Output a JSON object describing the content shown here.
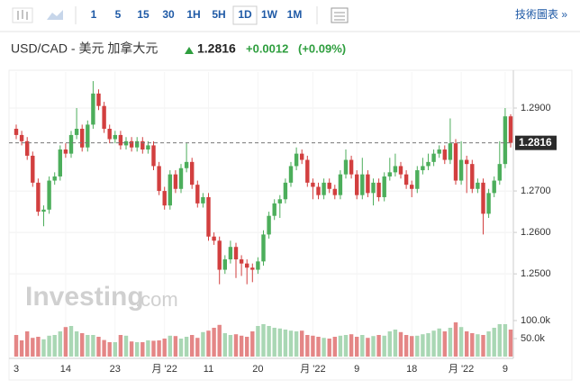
{
  "header": {
    "toolbar": [
      "1",
      "5",
      "15",
      "30",
      "1H",
      "5H",
      "1D",
      "1W",
      "1M"
    ],
    "link": "技術圖表 »",
    "pair": "USD/CAD - 美元 加拿大元",
    "change": "+0.0012",
    "change_pct": "(+0.09%)",
    "logo": "Investing",
    "logo_suffix": ".com"
  },
  "chart_data": {
    "type": "candlestick",
    "last_price": 1.2816,
    "up_color": "#4cae5b",
    "down_color": "#d23f3f",
    "volume_up_color": "#a9d7b4",
    "volume_down_color": "#e48686",
    "categories": [
      "3",
      null,
      null,
      null,
      null,
      null,
      null,
      null,
      null,
      "14",
      null,
      null,
      null,
      null,
      null,
      null,
      null,
      null,
      "23",
      null,
      null,
      null,
      null,
      null,
      null,
      null,
      null,
      "月 '22",
      null,
      null,
      null,
      null,
      null,
      null,
      null,
      "11",
      null,
      null,
      null,
      null,
      null,
      null,
      null,
      null,
      "20",
      null,
      null,
      null,
      null,
      null,
      null,
      null,
      null,
      null,
      "月 '22",
      null,
      null,
      null,
      null,
      null,
      null,
      null,
      "9",
      null,
      null,
      null,
      null,
      null,
      null,
      null,
      null,
      null,
      "18",
      null,
      null,
      null,
      null,
      null,
      null,
      null,
      null,
      "月 '22",
      null,
      null,
      null,
      null,
      null,
      null,
      null,
      "9",
      null
    ],
    "open": [
      1.285,
      1.2835,
      1.282,
      1.2785,
      1.272,
      1.265,
      1.2655,
      1.2725,
      1.2735,
      1.28,
      1.279,
      1.2835,
      1.285,
      1.2805,
      1.286,
      1.2935,
      1.2905,
      1.285,
      1.2825,
      1.2835,
      1.281,
      1.282,
      1.2805,
      1.282,
      1.28,
      1.281,
      1.276,
      1.27,
      1.2665,
      1.274,
      1.2705,
      1.2755,
      1.277,
      1.2715,
      1.267,
      1.2685,
      1.259,
      1.258,
      1.251,
      1.2535,
      1.2565,
      1.2535,
      1.2525,
      1.2515,
      1.251,
      1.253,
      1.2595,
      1.264,
      1.267,
      1.268,
      1.272,
      1.276,
      1.279,
      1.2775,
      1.272,
      1.271,
      1.269,
      1.272,
      1.2705,
      1.269,
      1.274,
      1.2775,
      1.274,
      1.269,
      1.274,
      1.2695,
      1.272,
      1.2685,
      1.2735,
      1.2745,
      1.276,
      1.274,
      1.2715,
      1.2705,
      1.275,
      1.276,
      1.277,
      1.279,
      1.28,
      1.2775,
      1.2815,
      1.2725,
      1.2775,
      1.2765,
      1.2705,
      1.272,
      1.2645,
      1.2695,
      1.2725,
      1.2765,
      1.288
    ],
    "high": [
      1.286,
      1.2845,
      1.283,
      1.2795,
      1.273,
      1.2665,
      1.2735,
      1.2745,
      1.281,
      1.2815,
      1.2845,
      1.29,
      1.286,
      1.287,
      1.2965,
      1.2945,
      1.2915,
      1.286,
      1.2845,
      1.2845,
      1.283,
      1.283,
      1.283,
      1.283,
      1.282,
      1.282,
      1.277,
      1.271,
      1.275,
      1.275,
      1.2765,
      1.2815,
      1.278,
      1.2725,
      1.2695,
      1.2695,
      1.26,
      1.259,
      1.2545,
      1.258,
      1.2575,
      1.2545,
      1.2535,
      1.2525,
      1.254,
      1.2605,
      1.265,
      1.268,
      1.269,
      1.273,
      1.277,
      1.2805,
      1.28,
      1.2785,
      1.273,
      1.272,
      1.273,
      1.273,
      1.2715,
      1.275,
      1.28,
      1.2785,
      1.275,
      1.278,
      1.275,
      1.273,
      1.273,
      1.2745,
      1.278,
      1.279,
      1.277,
      1.275,
      1.2725,
      1.276,
      1.278,
      1.279,
      1.28,
      1.281,
      1.281,
      1.2875,
      1.2825,
      1.282,
      1.2785,
      1.2775,
      1.273,
      1.273,
      1.2705,
      1.2735,
      1.282,
      1.29,
      1.2885
    ],
    "low": [
      1.2825,
      1.281,
      1.2775,
      1.271,
      1.264,
      1.2615,
      1.2645,
      1.2715,
      1.2725,
      1.278,
      1.278,
      1.2825,
      1.2795,
      1.2795,
      1.285,
      1.2895,
      1.284,
      1.2815,
      1.2815,
      1.28,
      1.28,
      1.2795,
      1.2795,
      1.279,
      1.279,
      1.275,
      1.269,
      1.2655,
      1.2655,
      1.2695,
      1.2695,
      1.2745,
      1.2705,
      1.266,
      1.266,
      1.258,
      1.257,
      1.2475,
      1.25,
      1.2525,
      1.249,
      1.2495,
      1.2475,
      1.248,
      1.25,
      1.252,
      1.2585,
      1.263,
      1.2635,
      1.267,
      1.271,
      1.275,
      1.2765,
      1.271,
      1.268,
      1.268,
      1.268,
      1.2695,
      1.268,
      1.268,
      1.273,
      1.273,
      1.268,
      1.268,
      1.2685,
      1.2665,
      1.2675,
      1.2675,
      1.2725,
      1.2735,
      1.273,
      1.2705,
      1.2685,
      1.2695,
      1.274,
      1.275,
      1.276,
      1.278,
      1.2765,
      1.2765,
      1.2715,
      1.2715,
      1.2695,
      1.2695,
      1.2695,
      1.2595,
      1.2635,
      1.2685,
      1.2715,
      1.2755,
      1.2805
    ],
    "close": [
      1.2835,
      1.282,
      1.2785,
      1.272,
      1.265,
      1.2655,
      1.2725,
      1.2735,
      1.28,
      1.279,
      1.2835,
      1.285,
      1.2805,
      1.286,
      1.2935,
      1.2905,
      1.285,
      1.2825,
      1.2835,
      1.281,
      1.282,
      1.2805,
      1.282,
      1.28,
      1.281,
      1.276,
      1.27,
      1.2665,
      1.274,
      1.2705,
      1.2755,
      1.277,
      1.2715,
      1.267,
      1.2685,
      1.259,
      1.258,
      1.251,
      1.2535,
      1.2565,
      1.2535,
      1.2525,
      1.2515,
      1.251,
      1.253,
      1.2595,
      1.264,
      1.267,
      1.268,
      1.272,
      1.276,
      1.279,
      1.2775,
      1.272,
      1.271,
      1.269,
      1.272,
      1.2705,
      1.269,
      1.274,
      1.2775,
      1.274,
      1.269,
      1.274,
      1.2695,
      1.272,
      1.2685,
      1.2735,
      1.2745,
      1.276,
      1.274,
      1.2715,
      1.2705,
      1.275,
      1.276,
      1.277,
      1.279,
      1.28,
      1.2775,
      1.2815,
      1.2725,
      1.2775,
      1.2765,
      1.2705,
      1.272,
      1.2645,
      1.2695,
      1.2725,
      1.2765,
      1.288,
      1.2816
    ],
    "volume": [
      60000,
      45000,
      70000,
      52000,
      55000,
      48000,
      58000,
      60000,
      70000,
      82000,
      85000,
      70000,
      65000,
      60000,
      60000,
      55000,
      46000,
      40000,
      40000,
      60000,
      58000,
      42000,
      40000,
      40000,
      45000,
      44000,
      45000,
      50000,
      58000,
      57000,
      50000,
      55000,
      60000,
      52000,
      68000,
      72000,
      80000,
      88000,
      65000,
      60000,
      62000,
      58000,
      55000,
      70000,
      85000,
      90000,
      85000,
      80000,
      78000,
      75000,
      72000,
      70000,
      72000,
      60000,
      58000,
      55000,
      52000,
      50000,
      55000,
      58000,
      60000,
      62000,
      55000,
      60000,
      52000,
      57000,
      60000,
      58000,
      70000,
      75000,
      68000,
      60000,
      57000,
      58000,
      62000,
      65000,
      72000,
      78000,
      70000,
      80000,
      95000,
      82000,
      70000,
      65000,
      62000,
      60000,
      70000,
      80000,
      90000,
      90000,
      75000
    ],
    "ylim": [
      1.2433,
      1.2976
    ],
    "yticks": [
      {
        "value": 1.25,
        "label": "1.2500"
      },
      {
        "value": 1.26,
        "label": "1.2600"
      },
      {
        "value": 1.27,
        "label": "1.2700"
      },
      {
        "value": 1.29,
        "label": "1.2900"
      }
    ],
    "volume_lim": [
      0,
      125000
    ],
    "volume_ticks": [
      {
        "value": 50000,
        "label": "50.0k"
      },
      {
        "value": 100000,
        "label": "100.0k"
      }
    ],
    "grid": true
  }
}
